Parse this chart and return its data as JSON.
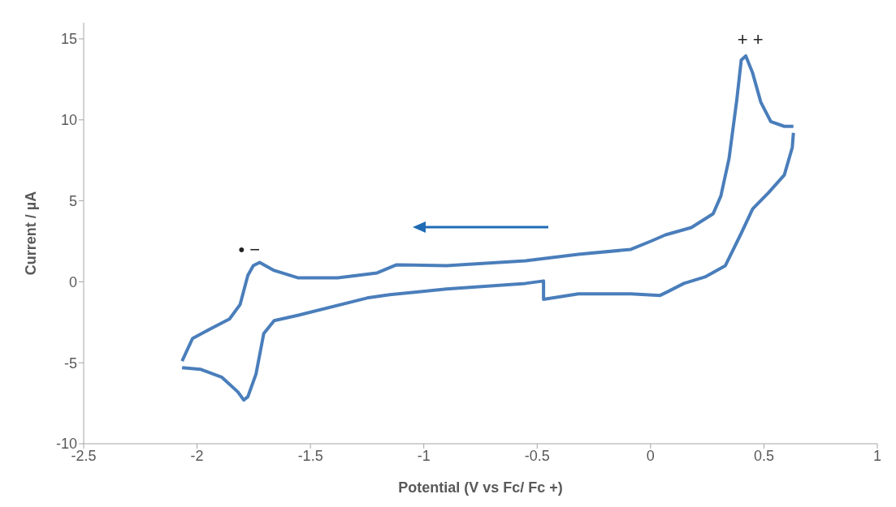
{
  "chart_data": {
    "type": "line",
    "xlabel": "Potential (V vs Fc/ Fc +)",
    "ylabel": "Current / µA",
    "xlim": [
      -2.5,
      1
    ],
    "xticks": [
      -2.5,
      -2,
      -1.5,
      -1,
      -0.5,
      0,
      0.5,
      1
    ],
    "ylim": [
      -10,
      16
    ],
    "yticks": [
      -10,
      -5,
      0,
      5,
      10,
      15
    ],
    "grid": false,
    "marker": "none",
    "line_style": "solid",
    "series": [
      {
        "color": "#4a7ebb",
        "x": [
          -2.066,
          -1.986,
          -1.89,
          -1.82,
          -1.794,
          -1.776,
          -1.74,
          -1.706,
          -1.66,
          -1.556,
          -1.25,
          -1.15,
          -0.9,
          -0.552,
          -0.472,
          -0.472,
          -0.318,
          -0.087,
          0.042,
          0.077,
          0.147,
          0.24,
          0.33,
          0.4,
          0.45,
          0.52,
          0.59,
          0.625,
          0.63
        ],
        "values": [
          -5.3,
          -5.4,
          -5.9,
          -6.8,
          -7.3,
          -7.1,
          -5.7,
          -3.2,
          -2.4,
          -2.07,
          -1,
          -0.8,
          -0.44,
          -0.1,
          0.05,
          -1.08,
          -0.74,
          -0.74,
          -0.84,
          -0.6,
          -0.1,
          0.3,
          1,
          3,
          4.5,
          5.5,
          6.6,
          8.3,
          9.2
        ]
      },
      {
        "color": "#4a7ebb",
        "x": [
          -2.066,
          -2.02,
          -1.94,
          -1.857,
          -1.81,
          -1.776,
          -1.752,
          -1.724,
          -1.66,
          -1.556,
          -1.38,
          -1.206,
          -1.12,
          -0.9,
          -0.552,
          -0.318,
          -0.087,
          0,
          0.066,
          0.18,
          0.276,
          0.31,
          0.346,
          0.38,
          0.4,
          0.42,
          0.45,
          0.486,
          0.53,
          0.59,
          0.63
        ],
        "values": [
          -4.9,
          -3.5,
          -2.9,
          -2.3,
          -1.4,
          0.4,
          1,
          1.2,
          0.7,
          0.25,
          0.25,
          0.55,
          1.05,
          1,
          1.3,
          1.7,
          2,
          2.5,
          2.9,
          3.35,
          4.2,
          5.3,
          7.6,
          11.2,
          13.7,
          13.95,
          12.9,
          11.1,
          9.9,
          9.6,
          9.6
        ]
      }
    ],
    "annotations": [
      "• −",
      "+ +"
    ]
  }
}
